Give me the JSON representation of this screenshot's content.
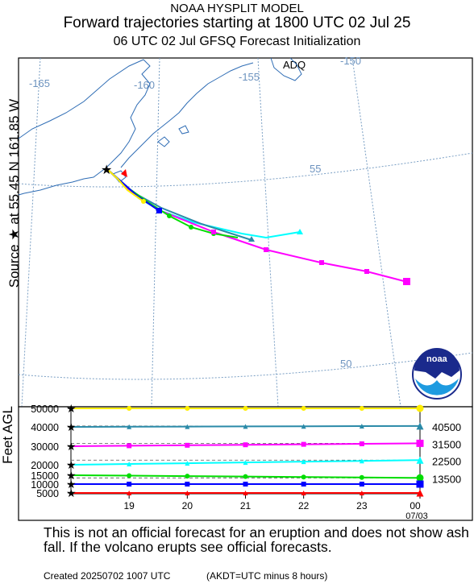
{
  "header": {
    "model": "NOAA HYSPLIT MODEL",
    "title": "Forward trajectories starting at 1800 UTC 02 Jul 25",
    "subtitle": "06 UTC 02 Jul    GFSQ  Forecast Initialization"
  },
  "source_label": "Source ★ at  55.45 N  161.85 W",
  "height_axis_label": "Feet AGL",
  "map": {
    "station": "ADQ",
    "lon_labels": [
      "-165",
      "-160",
      "-155",
      "-150"
    ],
    "lat_labels": [
      "55",
      "50"
    ],
    "logo_text": "noaa"
  },
  "chart_data": {
    "type": "line",
    "x_label": "",
    "time_ticks": [
      "19",
      "20",
      "21",
      "22",
      "23",
      "00"
    ],
    "end_date": "07/03",
    "y_ticks": [
      "50000",
      "40000",
      "30000",
      "20000",
      "15000",
      "10000",
      "5000"
    ],
    "end_heights": [
      "40500",
      "31500",
      "22500",
      "13500"
    ],
    "series": [
      {
        "color": "#ffee00",
        "marker": "circle",
        "start_ft": 50000,
        "end_ft": 50000
      },
      {
        "color": "#2a8aa8",
        "marker": "triangle",
        "start_ft": 40000,
        "end_ft": 40500
      },
      {
        "color": "#ff00ff",
        "marker": "square",
        "start_ft": 30000,
        "end_ft": 31500
      },
      {
        "color": "#00ffff",
        "marker": "triangle",
        "start_ft": 20000,
        "end_ft": 22500
      },
      {
        "color": "#00dd00",
        "marker": "circle",
        "start_ft": 15000,
        "end_ft": 13500
      },
      {
        "color": "#0000ff",
        "marker": "square",
        "start_ft": 10000,
        "end_ft": 10000
      },
      {
        "color": "#ff0000",
        "marker": "triangle",
        "start_ft": 5000,
        "end_ft": 5000
      }
    ]
  },
  "footer": {
    "disclaimer": "This is not an official forecast for an eruption and does not show ash fall. If the volcano erupts see official forecasts.",
    "created": "Created 20250702 1007 UTC",
    "akdt": "(AKDT=UTC minus 8 hours)"
  }
}
